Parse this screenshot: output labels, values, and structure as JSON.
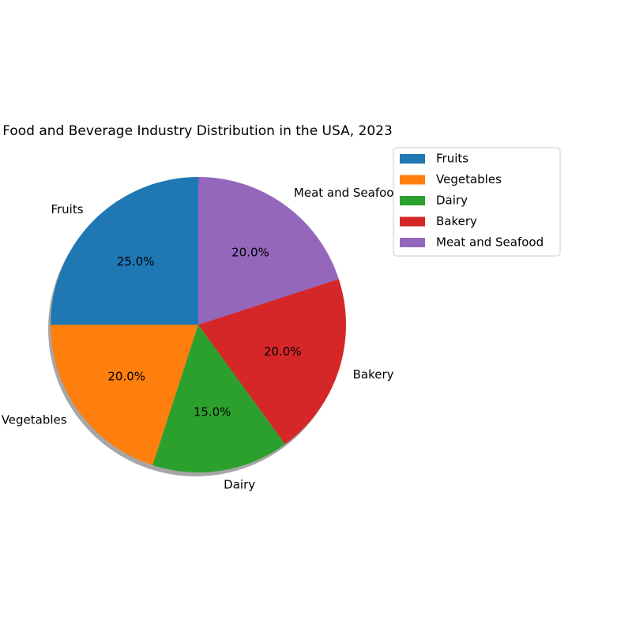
{
  "chart_data": {
    "type": "pie",
    "title": "Food and Beverage Industry Distribution in the USA, 2023",
    "categories": [
      "Fruits",
      "Vegetables",
      "Dairy",
      "Bakery",
      "Meat and Seafood"
    ],
    "values": [
      25.0,
      20.0,
      15.0,
      20.0,
      20.0
    ],
    "percent_labels": [
      "25.0%",
      "20.0%",
      "15.0%",
      "20.0%",
      "20.0%"
    ],
    "colors": [
      "#1f77b4",
      "#ff7f0e",
      "#2ca02c",
      "#d62728",
      "#9467bd"
    ],
    "start_angle_deg": 90,
    "direction": "counterclockwise",
    "shadow": true,
    "legend": {
      "placement": "upper-right-outside",
      "entries": [
        "Fruits",
        "Vegetables",
        "Dairy",
        "Bakery",
        "Meat and Seafood"
      ]
    }
  }
}
